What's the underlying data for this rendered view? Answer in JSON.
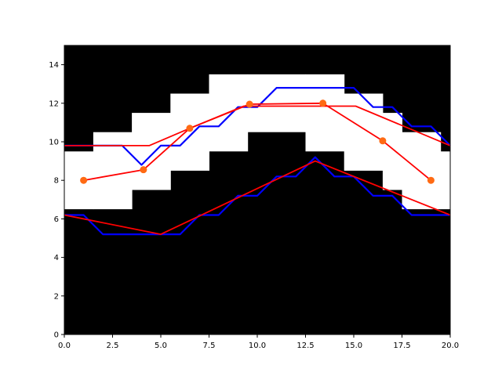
{
  "chart_data": {
    "type": "line",
    "title": "",
    "xlabel": "",
    "ylabel": "",
    "xlim": [
      0,
      20
    ],
    "ylim": [
      0,
      15
    ],
    "x_ticks": [
      {
        "value": 0,
        "label": "0.0"
      },
      {
        "value": 2.5,
        "label": "2.5"
      },
      {
        "value": 5,
        "label": "5.0"
      },
      {
        "value": 7.5,
        "label": "7.5"
      },
      {
        "value": 10,
        "label": "10.0"
      },
      {
        "value": 12.5,
        "label": "12.5"
      },
      {
        "value": 15,
        "label": "15.0"
      },
      {
        "value": 17.5,
        "label": "17.5"
      },
      {
        "value": 20,
        "label": "20.0"
      }
    ],
    "y_ticks": [
      {
        "value": 0,
        "label": "0"
      },
      {
        "value": 2,
        "label": "2"
      },
      {
        "value": 4,
        "label": "4"
      },
      {
        "value": 6,
        "label": "6"
      },
      {
        "value": 8,
        "label": "8"
      },
      {
        "value": 10,
        "label": "10"
      },
      {
        "value": 12,
        "label": "12"
      },
      {
        "value": 14,
        "label": "14"
      }
    ],
    "grid": false,
    "background_region": {
      "fill": "#ffffff",
      "outside_fill": "#000000",
      "columns": [
        {
          "x0": 0,
          "x1": 1.5,
          "y_low": 6.5,
          "y_high": 9.5
        },
        {
          "x0": 1.5,
          "x1": 3.5,
          "y_low": 6.5,
          "y_high": 10.5
        },
        {
          "x0": 3.5,
          "x1": 5.5,
          "y_low": 7.5,
          "y_high": 11.5
        },
        {
          "x0": 5.5,
          "x1": 7.5,
          "y_low": 8.5,
          "y_high": 12.5
        },
        {
          "x0": 7.5,
          "x1": 9.5,
          "y_low": 9.5,
          "y_high": 13.5
        },
        {
          "x0": 9.5,
          "x1": 12.5,
          "y_low": 10.5,
          "y_high": 13.5
        },
        {
          "x0": 12.5,
          "x1": 14.5,
          "y_low": 9.5,
          "y_high": 13.5
        },
        {
          "x0": 14.5,
          "x1": 16.5,
          "y_low": 8.5,
          "y_high": 12.5
        },
        {
          "x0": 16.5,
          "x1": 17.5,
          "y_low": 7.5,
          "y_high": 11.5
        },
        {
          "x0": 17.5,
          "x1": 19.5,
          "y_low": 6.5,
          "y_high": 10.5
        },
        {
          "x0": 19.5,
          "x1": 20,
          "y_low": 6.5,
          "y_high": 9.5
        }
      ]
    },
    "series": [
      {
        "color": "#0000ff",
        "points": [
          [
            0,
            9.8
          ],
          [
            3,
            9.8
          ],
          [
            4,
            8.8
          ],
          [
            5,
            9.8
          ],
          [
            6,
            9.8
          ],
          [
            7,
            10.8
          ],
          [
            8,
            10.8
          ],
          [
            9,
            11.8
          ],
          [
            10,
            11.8
          ],
          [
            11,
            12.8
          ],
          [
            15,
            12.8
          ],
          [
            16,
            11.8
          ],
          [
            17,
            11.8
          ],
          [
            18,
            10.8
          ],
          [
            19,
            10.8
          ],
          [
            20,
            9.8
          ]
        ]
      },
      {
        "color": "#0000ff",
        "points": [
          [
            0,
            6.2
          ],
          [
            1,
            6.2
          ],
          [
            2,
            5.2
          ],
          [
            6,
            5.2
          ],
          [
            7,
            6.2
          ],
          [
            8,
            6.2
          ],
          [
            9,
            7.2
          ],
          [
            10,
            7.2
          ],
          [
            11,
            8.2
          ],
          [
            12,
            8.2
          ],
          [
            13,
            9.2
          ],
          [
            14,
            8.2
          ],
          [
            15,
            8.2
          ],
          [
            16,
            7.2
          ],
          [
            17,
            7.2
          ],
          [
            18,
            6.2
          ],
          [
            20,
            6.2
          ]
        ]
      },
      {
        "color": "#ff0000",
        "points": [
          [
            0,
            9.8
          ],
          [
            4.4,
            9.8
          ],
          [
            6.5,
            10.7
          ],
          [
            9.3,
            11.85
          ],
          [
            15.1,
            11.85
          ],
          [
            20,
            9.8
          ]
        ]
      },
      {
        "color": "#ff0000",
        "points": [
          [
            0,
            6.2
          ],
          [
            5,
            5.2
          ],
          [
            13,
            9.0
          ],
          [
            20,
            6.2
          ]
        ]
      },
      {
        "color": "#ff0000",
        "marker_color": "#ff6a13",
        "markers": true,
        "points": [
          [
            1,
            8.0
          ],
          [
            4.1,
            8.55
          ],
          [
            6.5,
            10.7
          ],
          [
            9.6,
            11.95
          ],
          [
            13.4,
            12.0
          ],
          [
            16.5,
            10.05
          ],
          [
            19,
            8.0
          ]
        ]
      }
    ]
  }
}
